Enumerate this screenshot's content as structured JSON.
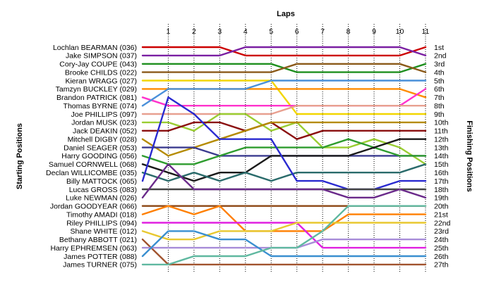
{
  "chart_data": {
    "type": "line",
    "title": "",
    "xlabel": "Laps",
    "ylabel_left": "Starting Positions",
    "ylabel_right": "Finishing Positions",
    "laps": [
      1,
      2,
      3,
      4,
      5,
      6,
      7,
      8,
      9,
      10,
      11
    ],
    "finishing_position_labels": [
      "1st",
      "2nd",
      "3rd",
      "4th",
      "5th",
      "6th",
      "7th",
      "8th",
      "9th",
      "10th",
      "11th",
      "12th",
      "13th",
      "14th",
      "15th",
      "16th",
      "17th",
      "18th",
      "19th",
      "20th",
      "21st",
      "22nd",
      "23rd",
      "24th",
      "25th",
      "26th",
      "27th"
    ],
    "y_direction": "position 1 at top, 27 at bottom",
    "grid": "vertical dotted lines at each lap",
    "series": [
      {
        "name": "Lochlan BEARMAN (036)",
        "color": "#cc0000",
        "start": 1,
        "positions": [
          1,
          1,
          1,
          2,
          2,
          2,
          2,
          2,
          2,
          2,
          1
        ]
      },
      {
        "name": "Jake SIMPSON (037)",
        "color": "#7a1fa2",
        "start": 2,
        "positions": [
          2,
          2,
          2,
          1,
          1,
          1,
          1,
          1,
          1,
          1,
          2
        ]
      },
      {
        "name": "Cory-Jay COUPE (043)",
        "color": "#1f8f1f",
        "start": 3,
        "positions": [
          3,
          3,
          3,
          3,
          3,
          4,
          4,
          4,
          4,
          4,
          3
        ]
      },
      {
        "name": "Brooke CHILDS (022)",
        "color": "#8b5a1a",
        "start": 4,
        "positions": [
          4,
          4,
          4,
          4,
          4,
          3,
          3,
          3,
          3,
          3,
          4
        ]
      },
      {
        "name": "Kieran WRAGG (027)",
        "color": "#f2d600",
        "start": 5,
        "positions": [
          5,
          5,
          5,
          5,
          5,
          9,
          9,
          9,
          9,
          9,
          9
        ]
      },
      {
        "name": "Tamzyn BUCKLEY (029)",
        "color": "#ff8c00",
        "start": 6,
        "positions": [
          6,
          6,
          6,
          6,
          6,
          6,
          6,
          6,
          6,
          6,
          7
        ]
      },
      {
        "name": "Brandon PATRICK (081)",
        "color": "#ff33cc",
        "start": 7,
        "positions": [
          8,
          8,
          8,
          8,
          8,
          8,
          8,
          8,
          8,
          8,
          6
        ]
      },
      {
        "name": "Thomas BYRNE (074)",
        "color": "#4a90d9",
        "start": 8,
        "positions": [
          6,
          6,
          6,
          6,
          5,
          5,
          5,
          5,
          5,
          5,
          5
        ]
      },
      {
        "name": "Joe PHILLIPS (097)",
        "color": "#e8a090",
        "start": 9,
        "positions": [
          9,
          9,
          9,
          9,
          9,
          8,
          8,
          8,
          8,
          8,
          8
        ]
      },
      {
        "name": "Jordan MUSK (023)",
        "color": "#9acd32",
        "start": 10,
        "positions": [
          10,
          11,
          9,
          9,
          11,
          10,
          13,
          13,
          12,
          13,
          15
        ]
      },
      {
        "name": "Jack DEAKIN (052)",
        "color": "#8b1010",
        "start": 11,
        "positions": [
          11,
          10,
          10,
          11,
          10,
          12,
          11,
          11,
          11,
          11,
          11
        ]
      },
      {
        "name": "Mitchell DIGBY (028)",
        "color": "#b58b00",
        "start": 12,
        "positions": [
          14,
          13,
          12,
          11,
          10,
          10,
          10,
          10,
          10,
          10,
          10
        ]
      },
      {
        "name": "Daniel SEAGER (053)",
        "color": "#3b3b8f",
        "start": 13,
        "positions": [
          13,
          13,
          14,
          14,
          14,
          14,
          14,
          14,
          14,
          14,
          14
        ]
      },
      {
        "name": "Harry GOODING (056)",
        "color": "#2e9c2e",
        "start": 14,
        "positions": [
          15,
          15,
          14,
          13,
          13,
          13,
          13,
          12,
          13,
          14,
          14
        ]
      },
      {
        "name": "Samuel CORNWELL (068)",
        "color": "#1a1a1a",
        "start": 15,
        "positions": [
          16,
          17,
          16,
          16,
          14,
          14,
          14,
          14,
          13,
          12,
          12
        ]
      },
      {
        "name": "Declan WILLICOMBE (035)",
        "color": "#2a6b6b",
        "start": 16,
        "positions": [
          17,
          16,
          17,
          16,
          17,
          16,
          16,
          16,
          16,
          16,
          15
        ]
      },
      {
        "name": "Billy MATTOCK (065)",
        "color": "#2a2ad0",
        "start": 17,
        "positions": [
          7,
          9,
          12,
          12,
          12,
          17,
          17,
          18,
          18,
          17,
          17
        ]
      },
      {
        "name": "Lucas GROSS (083)",
        "color": "#444444",
        "start": 18,
        "positions": [
          18,
          18,
          18,
          18,
          18,
          18,
          18,
          18,
          18,
          18,
          18
        ]
      },
      {
        "name": "Luke NEWMAN (026)",
        "color": "#6a2a8a",
        "start": 19,
        "positions": [
          15,
          18,
          18,
          18,
          18,
          18,
          18,
          19,
          19,
          18,
          19
        ]
      },
      {
        "name": "Jordan GOODYEAR (066)",
        "color": "#8b4513",
        "start": 20,
        "positions": [
          20,
          20,
          20,
          20,
          20,
          20,
          20,
          20,
          20,
          20,
          20
        ]
      },
      {
        "name": "Timothy AMADI (018)",
        "color": "#ff7f00",
        "start": 21,
        "positions": [
          20,
          21,
          20,
          23,
          23,
          23,
          23,
          21,
          21,
          21,
          21
        ]
      },
      {
        "name": "Riley PHILLIPS (094)",
        "color": "#e020e0",
        "start": 22,
        "positions": [
          22,
          22,
          22,
          22,
          22,
          22,
          25,
          25,
          25,
          25,
          25
        ]
      },
      {
        "name": "Shane WHITE (012)",
        "color": "#e8c830",
        "start": 23,
        "positions": [
          24,
          24,
          23,
          23,
          23,
          22,
          22,
          22,
          22,
          22,
          22
        ]
      },
      {
        "name": "Bethany ABBOTT (021)",
        "color": "#a0522d",
        "start": 24,
        "positions": [
          27,
          27,
          27,
          27,
          27,
          27,
          27,
          27,
          27,
          27,
          27
        ]
      },
      {
        "name": "Harry EPHREMSEN (063)",
        "color": "#a78cd8",
        "start": 25,
        "positions": [
          25,
          25,
          25,
          25,
          25,
          25,
          24,
          24,
          24,
          24,
          24
        ]
      },
      {
        "name": "James POTTER (088)",
        "color": "#3a8fd0",
        "start": 26,
        "positions": [
          23,
          23,
          24,
          24,
          26,
          26,
          26,
          26,
          26,
          26,
          26
        ]
      },
      {
        "name": "James TURNER (075)",
        "color": "#5fb8a0",
        "start": 27,
        "positions": [
          27,
          26,
          26,
          26,
          25,
          25,
          23,
          20,
          20,
          20,
          20
        ]
      }
    ]
  }
}
